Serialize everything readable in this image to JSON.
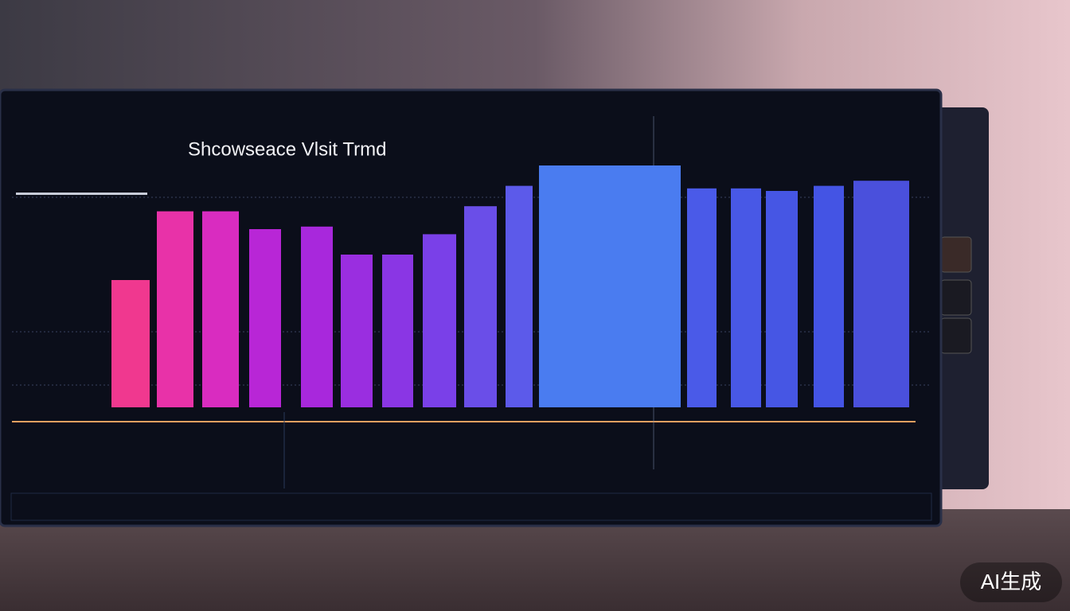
{
  "chart_data": {
    "type": "bar",
    "title": "Shcowseace Vlsit Trmd",
    "categories": [
      null,
      null,
      null,
      null,
      null,
      null,
      null,
      null,
      null,
      null,
      null,
      null,
      null,
      null,
      null,
      null
    ],
    "values": [
      50,
      77,
      77,
      70,
      71,
      60,
      60,
      68,
      79,
      87,
      95,
      86,
      86,
      85,
      87,
      89
    ],
    "colors": [
      "#f0388f",
      "#e832a8",
      "#d92cc0",
      "#b826d6",
      "#a828dc",
      "#9a2ee0",
      "#8a36e4",
      "#7a40e8",
      "#6a4ee8",
      "#5c5aea",
      "#4a7cf0",
      "#4a5ae8",
      "#4858e6",
      "#4656e4",
      "#4454e4",
      "#4a50dc"
    ],
    "ylim": [
      0,
      100
    ]
  },
  "watermark": "AI生成"
}
